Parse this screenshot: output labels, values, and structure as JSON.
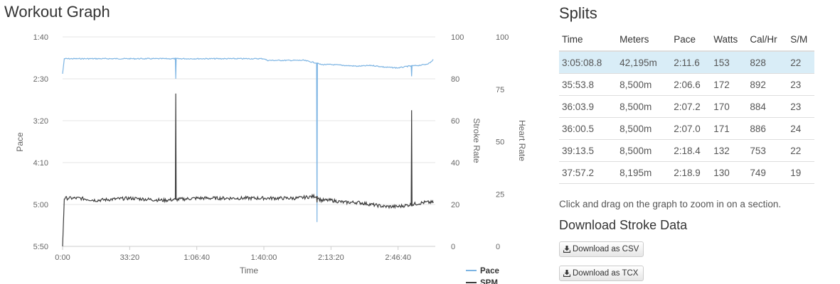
{
  "workout": {
    "title": "Workout Graph"
  },
  "chart_data": {
    "type": "line",
    "xlabel": "Time",
    "x_ticks": [
      "0:00",
      "33:20",
      "1:06:40",
      "1:40:00",
      "2:13:20",
      "2:46:40"
    ],
    "x_tick_seconds": [
      0,
      2000,
      4000,
      6000,
      8000,
      10000
    ],
    "xlim_seconds": [
      0,
      11109
    ],
    "axes": {
      "pace": {
        "label": "Pace",
        "ticks": [
          "1:40",
          "2:30",
          "3:20",
          "4:10",
          "5:00",
          "5:50"
        ],
        "tick_seconds": [
          100,
          150,
          200,
          250,
          300,
          350
        ],
        "ylim_seconds": [
          100,
          350
        ],
        "inverted": true
      },
      "stroke_rate": {
        "label": "Stroke Rate",
        "ticks": [
          "100",
          "80",
          "60",
          "40",
          "20",
          "0"
        ],
        "ylim": [
          0,
          100
        ]
      },
      "heart_rate": {
        "label": "Heart Rate",
        "ticks": [
          "100",
          "75",
          "50",
          "25",
          "0"
        ],
        "ylim": [
          0,
          100
        ]
      }
    },
    "grid": true,
    "legend_position": "bottom",
    "series": [
      {
        "name": "Pace",
        "axis": "pace",
        "color": "#7cb4e3",
        "x": [
          0,
          50,
          400,
          1000,
          2000,
          3000,
          4000,
          5000,
          6000,
          6100,
          6700,
          7000,
          7200,
          7550,
          7700,
          8000,
          8400,
          8800,
          9200,
          9600,
          10000,
          10300,
          10600,
          10800,
          10950,
          11050
        ],
        "y": [
          126,
          126,
          126,
          126,
          126,
          126,
          126,
          126,
          126,
          128,
          128,
          128,
          128,
          131,
          133,
          133,
          134,
          135,
          134,
          136,
          137,
          135,
          134,
          133,
          131,
          127
        ]
      },
      {
        "name": "SPM",
        "axis": "stroke_rate",
        "color": "#3d3d3d",
        "x": [
          0,
          50,
          500,
          1000,
          2000,
          3000,
          4000,
          5000,
          6000,
          7000,
          7550,
          7700,
          8000,
          8400,
          8800,
          9200,
          9600,
          10000,
          10400,
          10800,
          11050
        ],
        "y": [
          23,
          23,
          23,
          22,
          23,
          22,
          23,
          23,
          23,
          23,
          24,
          22,
          22,
          21,
          21,
          20,
          19,
          19,
          20,
          21,
          21
        ]
      }
    ],
    "pace_spikes": [
      {
        "x": 0,
        "y": 144
      },
      {
        "x": 3360,
        "y": 150
      },
      {
        "x": 7570,
        "y": 321
      },
      {
        "x": 10390,
        "y": 147
      }
    ],
    "spm_spikes": [
      {
        "x": 0,
        "y": 0
      },
      {
        "x": 3360,
        "y": 73
      },
      {
        "x": 7570,
        "y": 21
      },
      {
        "x": 10390,
        "y": 65
      }
    ]
  },
  "legend": {
    "pace": "Pace",
    "spm": "SPM"
  },
  "splits": {
    "title": "Splits",
    "columns": [
      "Time",
      "Meters",
      "Pace",
      "Watts",
      "Cal/Hr",
      "S/M"
    ],
    "rows": [
      [
        "3:05:08.8",
        "42,195m",
        "2:11.6",
        "153",
        "828",
        "22"
      ],
      [
        "35:53.8",
        "8,500m",
        "2:06.6",
        "172",
        "892",
        "23"
      ],
      [
        "36:03.9",
        "8,500m",
        "2:07.2",
        "170",
        "884",
        "23"
      ],
      [
        "36:00.5",
        "8,500m",
        "2:07.0",
        "171",
        "886",
        "24"
      ],
      [
        "39:13.5",
        "8,500m",
        "2:18.4",
        "132",
        "753",
        "22"
      ],
      [
        "37:57.2",
        "8,195m",
        "2:18.9",
        "130",
        "749",
        "19"
      ]
    ],
    "highlight_color": "#d9edf7"
  },
  "hint": "Click and drag on the graph to zoom in on a section.",
  "download": {
    "title": "Download Stroke Data",
    "csv_label": "Download as CSV",
    "tcx_label": "Download as TCX",
    "icon": "download-icon"
  }
}
